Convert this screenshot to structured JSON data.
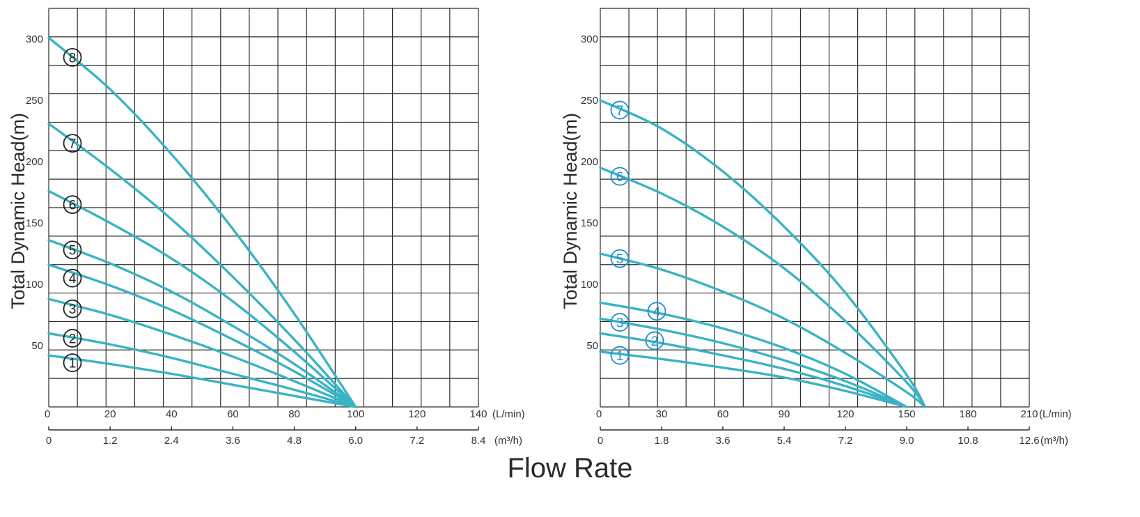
{
  "title": "Flow Rate",
  "colors": {
    "curve": "#3ab3c4",
    "marker_left": "#222222",
    "marker_right": "#1a8fd0",
    "grid": "#2b2b2b"
  },
  "chart_data": [
    {
      "type": "line",
      "ylabel": "Total Dynamic Head(m)",
      "xlabel": "Flow Rate",
      "xlim": [
        0,
        140
      ],
      "ylim": [
        0,
        325
      ],
      "x_unit": "(L/min)",
      "x2_unit": "(m³/h)",
      "x_ticks": [
        "0",
        "20",
        "40",
        "60",
        "80",
        "100",
        "120",
        "140"
      ],
      "x2_ticks": [
        "0",
        "1.2",
        "2.4",
        "3.6",
        "4.8",
        "6.0",
        "7.2",
        "8.4"
      ],
      "y_ticks": [
        "50",
        "100",
        "150",
        "200",
        "250",
        "300"
      ],
      "grid": true,
      "series": [
        {
          "name": "1",
          "x": [
            0,
            20,
            40,
            60,
            80,
            100
          ],
          "y": [
            42,
            35,
            27,
            18,
            9,
            0
          ]
        },
        {
          "name": "2",
          "x": [
            0,
            20,
            40,
            60,
            80,
            100
          ],
          "y": [
            60,
            51,
            40,
            27,
            14,
            0
          ]
        },
        {
          "name": "3",
          "x": [
            0,
            20,
            40,
            60,
            80,
            100
          ],
          "y": [
            88,
            75,
            59,
            41,
            21,
            0
          ]
        },
        {
          "name": "4",
          "x": [
            0,
            20,
            40,
            60,
            80,
            100
          ],
          "y": [
            116,
            99,
            79,
            55,
            29,
            0
          ]
        },
        {
          "name": "5",
          "x": [
            0,
            20,
            40,
            60,
            80,
            100
          ],
          "y": [
            136,
            117,
            94,
            66,
            35,
            0
          ]
        },
        {
          "name": "6",
          "x": [
            0,
            20,
            40,
            60,
            80,
            100
          ],
          "y": [
            176,
            150,
            121,
            86,
            45,
            0
          ]
        },
        {
          "name": "7",
          "x": [
            0,
            20,
            40,
            60,
            80,
            100
          ],
          "y": [
            231,
            194,
            153,
            106,
            55,
            0
          ]
        },
        {
          "name": "8",
          "x": [
            0,
            20,
            40,
            60,
            80,
            100
          ],
          "y": [
            301,
            259,
            206,
            145,
            76,
            0
          ]
        }
      ]
    },
    {
      "type": "line",
      "ylabel": "Total Dynamic Head(m)",
      "xlabel": "Flow Rate",
      "xlim": [
        0,
        210
      ],
      "ylim": [
        0,
        325
      ],
      "x_unit": "(L/min)",
      "x2_unit": "(m³/h)",
      "x_ticks": [
        "0",
        "30",
        "60",
        "90",
        "120",
        "150",
        "180",
        "210"
      ],
      "x2_ticks": [
        "0",
        "1.8",
        "3.6",
        "5.4",
        "7.2",
        "9.0",
        "10.8",
        "12.6"
      ],
      "y_ticks": [
        "50",
        "100",
        "150",
        "200",
        "250",
        "300"
      ],
      "grid": true,
      "series": [
        {
          "name": "1",
          "x": [
            0,
            30,
            60,
            90,
            120,
            150
          ],
          "y": [
            45,
            39,
            32,
            24,
            13,
            0
          ]
        },
        {
          "name": "2",
          "x": [
            0,
            30,
            60,
            90,
            120,
            150
          ],
          "y": [
            60,
            52,
            42,
            31,
            17,
            0
          ]
        },
        {
          "name": "3",
          "x": [
            0,
            30,
            60,
            90,
            120,
            150
          ],
          "y": [
            72,
            63,
            52,
            38,
            21,
            0
          ]
        },
        {
          "name": "4",
          "x": [
            0,
            30,
            60,
            90,
            120,
            150
          ],
          "y": [
            85,
            76,
            64,
            48,
            27,
            0
          ]
        },
        {
          "name": "5",
          "x": [
            0,
            30,
            60,
            90,
            120,
            150,
            159
          ],
          "y": [
            125,
            112,
            94,
            72,
            44,
            12,
            0
          ]
        },
        {
          "name": "6",
          "x": [
            0,
            30,
            60,
            90,
            120,
            150,
            159
          ],
          "y": [
            195,
            174,
            147,
            113,
            70,
            20,
            0
          ]
        },
        {
          "name": "7",
          "x": [
            0,
            30,
            60,
            90,
            120,
            150,
            159
          ],
          "y": [
            250,
            227,
            192,
            147,
            93,
            26,
            0
          ]
        }
      ]
    }
  ]
}
